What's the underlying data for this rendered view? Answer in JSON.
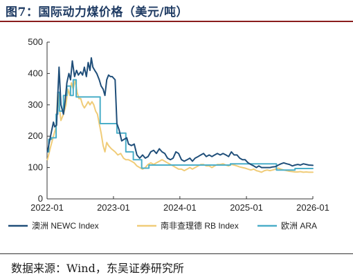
{
  "figure": {
    "title": "图7：国际动力煤价格（美元/吨）",
    "source": "数据来源：Wind，东吴证券研究所"
  },
  "chart_data": {
    "type": "line",
    "title": "图7：国际动力煤价格（美元/吨）",
    "xlabel": "",
    "ylabel": "",
    "ylim": [
      0,
      500
    ],
    "yticks": [
      0,
      100,
      200,
      300,
      400,
      500
    ],
    "xlim": [
      "2022-01",
      "2026-01"
    ],
    "xticks": [
      "2022-01",
      "2023-01",
      "2024-01",
      "2025-01",
      "2026-01"
    ],
    "grid": false,
    "legend_position": "bottom",
    "series": [
      {
        "name": "澳洲 NEWC Index",
        "color": "#1f4e79",
        "points": [
          [
            "2022-01-03",
            150
          ],
          [
            "2022-01-20",
            200
          ],
          [
            "2022-02-05",
            245
          ],
          [
            "2022-02-12",
            230
          ],
          [
            "2022-02-22",
            235
          ],
          [
            "2022-03-01",
            330
          ],
          [
            "2022-03-08",
            420
          ],
          [
            "2022-03-18",
            300
          ],
          [
            "2022-04-01",
            270
          ],
          [
            "2022-04-10",
            310
          ],
          [
            "2022-04-20",
            370
          ],
          [
            "2022-05-01",
            400
          ],
          [
            "2022-05-10",
            380
          ],
          [
            "2022-05-20",
            440
          ],
          [
            "2022-06-01",
            390
          ],
          [
            "2022-06-12",
            410
          ],
          [
            "2022-06-22",
            395
          ],
          [
            "2022-07-05",
            405
          ],
          [
            "2022-07-15",
            395
          ],
          [
            "2022-07-25",
            420
          ],
          [
            "2022-08-05",
            390
          ],
          [
            "2022-08-15",
            435
          ],
          [
            "2022-08-25",
            410
          ],
          [
            "2022-09-01",
            450
          ],
          [
            "2022-09-10",
            420
          ],
          [
            "2022-09-20",
            410
          ],
          [
            "2022-10-01",
            400
          ],
          [
            "2022-10-15",
            380
          ],
          [
            "2022-10-25",
            360
          ],
          [
            "2022-11-05",
            350
          ],
          [
            "2022-11-15",
            330
          ],
          [
            "2022-11-25",
            380
          ],
          [
            "2022-12-05",
            395
          ],
          [
            "2022-12-15",
            390
          ],
          [
            "2022-12-25",
            390
          ],
          [
            "2023-01-10",
            380
          ],
          [
            "2023-01-20",
            240
          ],
          [
            "2023-02-01",
            220
          ],
          [
            "2023-02-15",
            185
          ],
          [
            "2023-03-01",
            190
          ],
          [
            "2023-03-15",
            195
          ],
          [
            "2023-03-25",
            175
          ],
          [
            "2023-04-10",
            170
          ],
          [
            "2023-04-25",
            175
          ],
          [
            "2023-05-10",
            140
          ],
          [
            "2023-05-25",
            130
          ],
          [
            "2023-06-10",
            140
          ],
          [
            "2023-06-25",
            130
          ],
          [
            "2023-07-10",
            135
          ],
          [
            "2023-07-25",
            150
          ],
          [
            "2023-08-10",
            155
          ],
          [
            "2023-08-25",
            145
          ],
          [
            "2023-09-10",
            160
          ],
          [
            "2023-09-25",
            150
          ],
          [
            "2023-10-10",
            145
          ],
          [
            "2023-10-25",
            130
          ],
          [
            "2023-11-10",
            125
          ],
          [
            "2023-11-25",
            130
          ],
          [
            "2023-12-10",
            150
          ],
          [
            "2023-12-25",
            145
          ],
          [
            "2024-01-10",
            125
          ],
          [
            "2024-01-25",
            120
          ],
          [
            "2024-02-10",
            125
          ],
          [
            "2024-02-25",
            130
          ],
          [
            "2024-03-10",
            120
          ],
          [
            "2024-03-25",
            130
          ],
          [
            "2024-04-10",
            135
          ],
          [
            "2024-04-25",
            140
          ],
          [
            "2024-05-10",
            145
          ],
          [
            "2024-05-25",
            135
          ],
          [
            "2024-06-10",
            140
          ],
          [
            "2024-06-25",
            135
          ],
          [
            "2024-07-10",
            140
          ],
          [
            "2024-07-25",
            145
          ],
          [
            "2024-08-10",
            140
          ],
          [
            "2024-08-25",
            145
          ],
          [
            "2024-09-10",
            140
          ],
          [
            "2024-09-25",
            135
          ],
          [
            "2024-10-10",
            150
          ],
          [
            "2024-10-25",
            140
          ],
          [
            "2024-11-10",
            140
          ],
          [
            "2024-11-25",
            130
          ],
          [
            "2024-12-10",
            125
          ],
          [
            "2024-12-25",
            125
          ],
          [
            "2025-01-10",
            115
          ],
          [
            "2025-01-25",
            110
          ],
          [
            "2025-02-10",
            105
          ],
          [
            "2025-02-25",
            100
          ],
          [
            "2025-03-10",
            105
          ],
          [
            "2025-03-25",
            100
          ],
          [
            "2025-04-10",
            100
          ],
          [
            "2025-04-25",
            100
          ],
          [
            "2025-05-10",
            100
          ],
          [
            "2025-05-25",
            102
          ],
          [
            "2025-06-10",
            103
          ],
          [
            "2025-06-25",
            108
          ],
          [
            "2025-07-10",
            112
          ],
          [
            "2025-07-25",
            115
          ],
          [
            "2025-08-10",
            112
          ],
          [
            "2025-08-25",
            110
          ],
          [
            "2025-09-10",
            105
          ],
          [
            "2025-09-25",
            108
          ],
          [
            "2025-10-10",
            110
          ],
          [
            "2025-10-25",
            108
          ],
          [
            "2025-11-10",
            112
          ],
          [
            "2025-11-25",
            110
          ],
          [
            "2025-12-10",
            108
          ],
          [
            "2026-01-01",
            107
          ]
        ]
      },
      {
        "name": "南非查理德 RB Index",
        "color": "#f0cc78",
        "points": [
          [
            "2022-01-03",
            125
          ],
          [
            "2022-01-20",
            165
          ],
          [
            "2022-02-05",
            200
          ],
          [
            "2022-02-20",
            230
          ],
          [
            "2022-03-01",
            340
          ],
          [
            "2022-03-08",
            300
          ],
          [
            "2022-03-18",
            250
          ],
          [
            "2022-04-01",
            270
          ],
          [
            "2022-04-15",
            300
          ],
          [
            "2022-04-25",
            350
          ],
          [
            "2022-05-05",
            330
          ],
          [
            "2022-05-15",
            370
          ],
          [
            "2022-05-25",
            350
          ],
          [
            "2022-06-05",
            380
          ],
          [
            "2022-06-15",
            340
          ],
          [
            "2022-06-25",
            320
          ],
          [
            "2022-07-05",
            320
          ],
          [
            "2022-07-15",
            300
          ],
          [
            "2022-07-25",
            290
          ],
          [
            "2022-08-05",
            300
          ],
          [
            "2022-08-15",
            310
          ],
          [
            "2022-08-25",
            300
          ],
          [
            "2022-09-05",
            310
          ],
          [
            "2022-09-15",
            300
          ],
          [
            "2022-09-25",
            280
          ],
          [
            "2022-10-05",
            270
          ],
          [
            "2022-10-15",
            240
          ],
          [
            "2022-10-25",
            210
          ],
          [
            "2022-11-05",
            170
          ],
          [
            "2022-11-15",
            150
          ],
          [
            "2022-11-25",
            180
          ],
          [
            "2022-12-05",
            170
          ],
          [
            "2022-12-20",
            160
          ],
          [
            "2023-01-10",
            150
          ],
          [
            "2023-01-25",
            140
          ],
          [
            "2023-02-10",
            145
          ],
          [
            "2023-02-25",
            130
          ],
          [
            "2023-03-10",
            125
          ],
          [
            "2023-03-25",
            125
          ],
          [
            "2023-04-10",
            120
          ],
          [
            "2023-04-25",
            115
          ],
          [
            "2023-05-10",
            105
          ],
          [
            "2023-05-25",
            100
          ],
          [
            "2023-06-10",
            95
          ],
          [
            "2023-06-25",
            100
          ],
          [
            "2023-07-10",
            110
          ],
          [
            "2023-07-25",
            115
          ],
          [
            "2023-08-10",
            110
          ],
          [
            "2023-08-25",
            115
          ],
          [
            "2023-09-10",
            120
          ],
          [
            "2023-09-25",
            125
          ],
          [
            "2023-10-10",
            120
          ],
          [
            "2023-10-25",
            115
          ],
          [
            "2023-11-10",
            110
          ],
          [
            "2023-11-25",
            105
          ],
          [
            "2023-12-10",
            100
          ],
          [
            "2023-12-25",
            95
          ],
          [
            "2024-01-10",
            95
          ],
          [
            "2024-01-25",
            90
          ],
          [
            "2024-02-10",
            95
          ],
          [
            "2024-02-25",
            100
          ],
          [
            "2024-03-10",
            95
          ],
          [
            "2024-03-25",
            100
          ],
          [
            "2024-04-10",
            105
          ],
          [
            "2024-04-25",
            110
          ],
          [
            "2024-05-10",
            110
          ],
          [
            "2024-05-25",
            105
          ],
          [
            "2024-06-10",
            105
          ],
          [
            "2024-06-25",
            100
          ],
          [
            "2024-07-10",
            105
          ],
          [
            "2024-07-25",
            110
          ],
          [
            "2024-08-10",
            110
          ],
          [
            "2024-08-25",
            112
          ],
          [
            "2024-09-10",
            108
          ],
          [
            "2024-09-25",
            105
          ],
          [
            "2024-10-10",
            110
          ],
          [
            "2024-10-25",
            108
          ],
          [
            "2024-11-10",
            105
          ],
          [
            "2024-11-25",
            102
          ],
          [
            "2024-12-10",
            100
          ],
          [
            "2024-12-25",
            98
          ],
          [
            "2025-01-10",
            95
          ],
          [
            "2025-01-25",
            92
          ],
          [
            "2025-02-10",
            95
          ],
          [
            "2025-02-25",
            90
          ],
          [
            "2025-03-10",
            88
          ],
          [
            "2025-03-25",
            85
          ],
          [
            "2025-04-10",
            90
          ],
          [
            "2025-04-25",
            92
          ],
          [
            "2025-05-10",
            90
          ],
          [
            "2025-05-25",
            92
          ],
          [
            "2025-06-10",
            95
          ],
          [
            "2025-06-25",
            98
          ],
          [
            "2025-07-10",
            95
          ],
          [
            "2025-07-25",
            92
          ],
          [
            "2025-08-10",
            90
          ],
          [
            "2025-08-25",
            88
          ],
          [
            "2025-09-10",
            87
          ],
          [
            "2025-09-25",
            86
          ],
          [
            "2025-10-10",
            86
          ],
          [
            "2025-10-25",
            87
          ],
          [
            "2025-11-10",
            85
          ],
          [
            "2025-11-25",
            86
          ],
          [
            "2025-12-10",
            85
          ],
          [
            "2026-01-01",
            85
          ]
        ]
      },
      {
        "name": "欧洲 ARA",
        "color": "#4aaec8",
        "points": [
          [
            "2022-01-03",
            150
          ],
          [
            "2022-01-10",
            150
          ],
          [
            "2022-01-10",
            190
          ],
          [
            "2022-01-25",
            190
          ],
          [
            "2022-01-25",
            195
          ],
          [
            "2022-02-20",
            195
          ],
          [
            "2022-02-20",
            270
          ],
          [
            "2022-03-01",
            270
          ],
          [
            "2022-03-01",
            340
          ],
          [
            "2022-03-10",
            340
          ],
          [
            "2022-03-10",
            280
          ],
          [
            "2022-04-01",
            280
          ],
          [
            "2022-04-01",
            330
          ],
          [
            "2022-04-20",
            330
          ],
          [
            "2022-04-20",
            360
          ],
          [
            "2022-05-10",
            360
          ],
          [
            "2022-05-10",
            330
          ],
          [
            "2022-05-25",
            330
          ],
          [
            "2022-05-25",
            380
          ],
          [
            "2022-06-10",
            380
          ],
          [
            "2022-06-10",
            325
          ],
          [
            "2022-10-20",
            325
          ],
          [
            "2022-10-20",
            240
          ],
          [
            "2023-01-20",
            240
          ],
          [
            "2023-01-20",
            210
          ],
          [
            "2023-03-10",
            210
          ],
          [
            "2023-03-10",
            150
          ],
          [
            "2023-04-20",
            150
          ],
          [
            "2023-04-20",
            125
          ],
          [
            "2023-06-05",
            125
          ],
          [
            "2023-06-05",
            98
          ],
          [
            "2023-07-15",
            98
          ],
          [
            "2023-07-15",
            108
          ],
          [
            "2024-10-05",
            108
          ],
          [
            "2024-10-05",
            112
          ],
          [
            "2025-06-15",
            112
          ],
          [
            "2025-06-15",
            92
          ],
          [
            "2025-09-25",
            92
          ],
          [
            "2025-09-25",
            97
          ],
          [
            "2026-01-01",
            97
          ]
        ]
      }
    ]
  }
}
